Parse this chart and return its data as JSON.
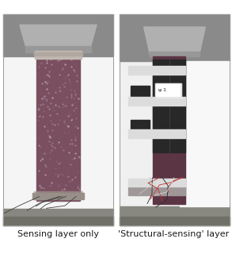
{
  "background_color": "#ffffff",
  "fig_width": 2.93,
  "fig_height": 3.2,
  "dpi": 100,
  "label_left": "Sensing layer only",
  "label_right": "'Structural-sensing' layer",
  "label_fontsize": 8.0,
  "separator_color": "#cccccc",
  "photo_border_color": "#aaaaaa",
  "left_bg_top": "#8a8a8a",
  "left_bg_mid": "#f2f2f2",
  "left_bg_bot": "#888888",
  "right_bg_top": "#8a8a8a",
  "right_bg_mid": "#f0f0f0",
  "right_bg_bot": "#888888",
  "bracket_color": "#a8a8a8",
  "bracket_dark": "#888888",
  "col_left_color": "#7a4f60",
  "col_right_color": "#5c3545",
  "col_texture_light": "#c0a0b0",
  "col_texture_dark": "#6a3f50",
  "sensor_white": "#dcdcdc",
  "sensor_dark": "#282828",
  "sensor_mid": "#484848",
  "wire_dark": "#383838",
  "wire_red": "#b83030",
  "floor_color_left": "#7a7a6a",
  "floor_color_right": "#707068"
}
